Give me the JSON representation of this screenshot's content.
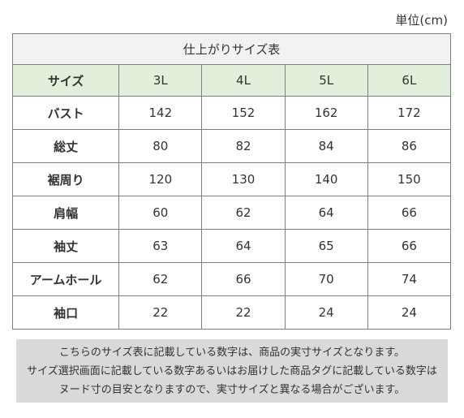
{
  "unit_label": "単位(cm)",
  "table": {
    "title": "仕上がりサイズ表",
    "header_label": "サイズ",
    "sizes": [
      "3L",
      "4L",
      "5L",
      "6L"
    ],
    "rows": [
      {
        "label": "バスト",
        "values": [
          "142",
          "152",
          "162",
          "172"
        ]
      },
      {
        "label": "総丈",
        "values": [
          "80",
          "82",
          "84",
          "86"
        ]
      },
      {
        "label": "裾周り",
        "values": [
          "120",
          "130",
          "140",
          "150"
        ]
      },
      {
        "label": "肩幅",
        "values": [
          "60",
          "62",
          "64",
          "66"
        ]
      },
      {
        "label": "袖丈",
        "values": [
          "63",
          "64",
          "65",
          "66"
        ]
      },
      {
        "label": "アームホール",
        "values": [
          "62",
          "66",
          "70",
          "74"
        ]
      },
      {
        "label": "袖口",
        "values": [
          "22",
          "22",
          "24",
          "24"
        ]
      }
    ]
  },
  "note": {
    "lines": [
      "こちらのサイズ表に記載している数字は、商品の実寸サイズとなります。",
      "サイズ選択画面に記載している数字あるいはお届けした商品タグに記載している数字は",
      "ヌード寸の目安となりますので、実寸サイズと異なる場合がございます。"
    ]
  },
  "colors": {
    "header_bg": "#e2efda",
    "title_bg": "#f2f2f2",
    "note_bg": "#d9d9d9",
    "border": "#7f7f7f"
  }
}
